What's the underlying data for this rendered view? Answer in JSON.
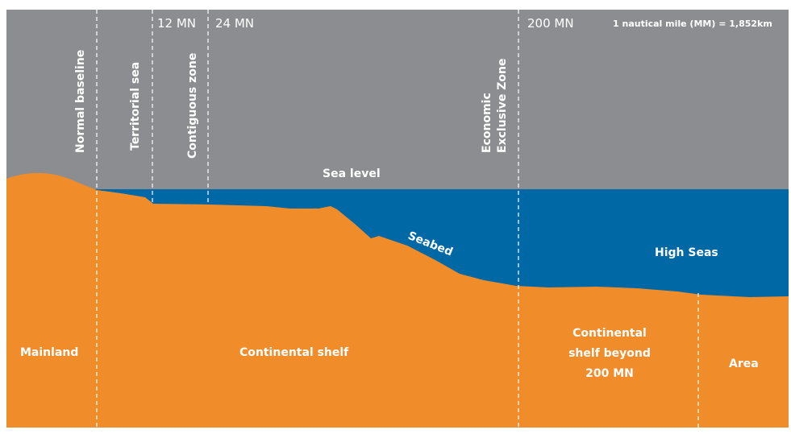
{
  "colors": {
    "sky": "#8b8d90",
    "sea": "#0068a4",
    "land": "#f08c2a",
    "line": "#ffffff",
    "background": "#ffffff"
  },
  "distance_marks": {
    "twelve": "12 MN",
    "twenty_four": "24 MN",
    "two_hundred": "200 MN"
  },
  "note": "1 nautical mile (MM) = 1,852km",
  "vertical_labels": {
    "normal_baseline": "Normal baseline",
    "territorial_sea": "Territorial sea",
    "contiguous_zone": "Contiguous zone",
    "eez_line1": "Economic",
    "eez_line2": "Exclusive Zone"
  },
  "sea_level": "Sea level",
  "seabed": "Seabed",
  "high_seas": "High Seas",
  "land_labels": {
    "mainland": "Mainland",
    "continental_shelf": "Continental shelf",
    "beyond_line1": "Continental",
    "beyond_line2": "shelf beyond",
    "beyond_line3": "200 MN",
    "area": "Area"
  }
}
